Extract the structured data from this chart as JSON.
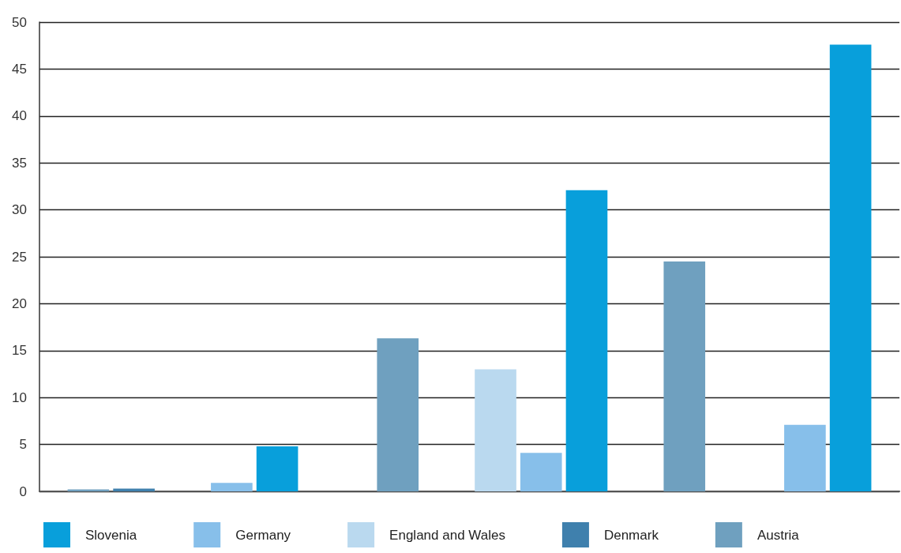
{
  "chart_data": {
    "type": "bar",
    "categories": [
      null,
      null,
      null,
      null,
      null,
      null
    ],
    "series": [
      {
        "name": "Slovenia",
        "color": "#089fdb",
        "values": [
          null,
          4.8,
          null,
          32.1,
          null,
          47.6
        ]
      },
      {
        "name": "Germany",
        "color": "#87bfea",
        "values": [
          null,
          0.9,
          null,
          4.1,
          null,
          7.1
        ]
      },
      {
        "name": "England and Wales",
        "color": "#bad9ef",
        "values": [
          null,
          null,
          null,
          13.0,
          null,
          null
        ]
      },
      {
        "name": "Denmark",
        "color": "#3f80ad",
        "values": [
          0.3,
          null,
          null,
          null,
          null,
          null
        ]
      },
      {
        "name": "Austria",
        "color": "#6fa0bf",
        "values": [
          0.2,
          null,
          16.3,
          null,
          24.5,
          null
        ]
      }
    ],
    "ylim": [
      0,
      50
    ],
    "yticks": [
      0,
      5,
      10,
      15,
      20,
      25,
      30,
      35,
      40,
      45,
      50
    ],
    "grid": "y",
    "legend": "bottom",
    "tick_labels": "y"
  }
}
